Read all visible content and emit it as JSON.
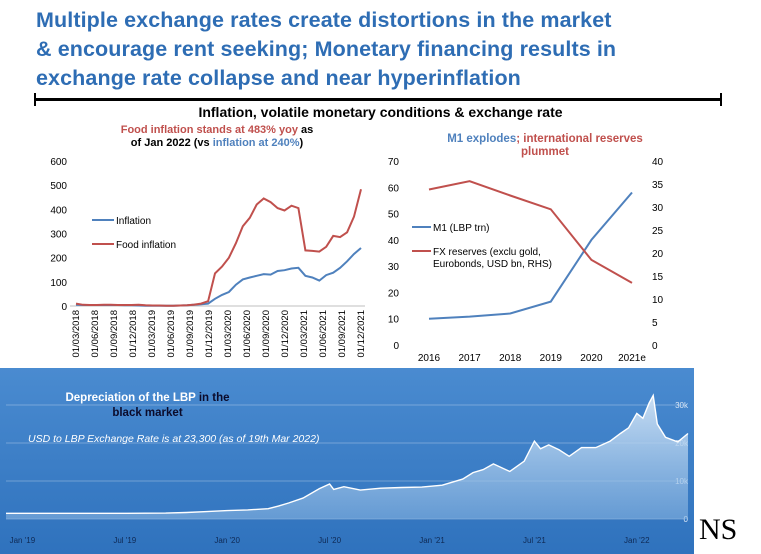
{
  "header": {
    "title_line1": "Multiple exchange rates create distortions in the market",
    "title_line2": "& encourage rent seeking; Monetary financing results in",
    "title_line3": "exchange rate collapse and near hyperinflation",
    "subtitle": "Inflation, volatile monetary conditions & exchange rate"
  },
  "annotations": {
    "left_part1": "Food inflation stands at 483% yoy",
    "left_part2": " as",
    "left_part3": "of Jan 2022 (vs ",
    "left_part4": "inflation at 240%",
    "left_part5": ")",
    "right_part1": "M1 explodes",
    "right_part2": "; international reserves",
    "right_part3": "plummet"
  },
  "lbp": {
    "title_part1": "Depreciation of the LBP",
    "title_part2": " in the",
    "title_part3": "black market",
    "note": "USD to LBP Exchange Rate is at 23,300 (as of 19th Mar 2022)"
  },
  "signature": "NS",
  "colors": {
    "title_blue": "#2e6db4",
    "series_blue": "#4f81bd",
    "series_red": "#c0504d",
    "panel_blue": "#3e7fc5"
  },
  "chart_data": [
    {
      "type": "line",
      "ylim": [
        0,
        600
      ],
      "yticks": [
        0,
        100,
        200,
        300,
        400,
        500,
        600
      ],
      "legend_position": "left-middle",
      "xticks": [
        "01/03/2018",
        "01/06/2018",
        "01/09/2018",
        "01/12/2018",
        "01/03/2019",
        "01/06/2019",
        "01/09/2019",
        "01/12/2019",
        "01/03/2020",
        "01/06/2020",
        "01/09/2020",
        "01/12/2020",
        "01/03/2021",
        "01/06/2021",
        "01/09/2021",
        "01/12/2021"
      ],
      "series": [
        {
          "name": "Inflation",
          "color": "#4f81bd",
          "values": [
            5,
            4,
            4,
            4,
            4,
            4,
            4,
            3,
            3,
            2,
            1,
            1,
            1,
            1,
            1,
            2,
            3,
            5,
            7,
            10,
            30,
            46,
            58,
            88,
            110,
            118,
            125,
            132,
            130,
            145,
            148,
            155,
            158,
            125,
            118,
            105,
            128,
            138,
            158,
            185,
            215,
            240
          ]
        },
        {
          "name": "Food inflation",
          "color": "#c0504d",
          "values": [
            10,
            5,
            4,
            4,
            5,
            5,
            4,
            4,
            4,
            5,
            3,
            2,
            2,
            1,
            1,
            2,
            3,
            6,
            10,
            20,
            135,
            163,
            200,
            260,
            330,
            365,
            420,
            445,
            430,
            405,
            395,
            415,
            405,
            230,
            228,
            225,
            245,
            290,
            285,
            305,
            370,
            483
          ]
        }
      ]
    },
    {
      "type": "line",
      "categories": [
        "2016",
        "2017",
        "2018",
        "2019",
        "2020",
        "2021e"
      ],
      "ylim_left": [
        0,
        70
      ],
      "yticks_left": [
        0,
        10,
        20,
        30,
        40,
        50,
        60,
        70
      ],
      "ylim_right": [
        0,
        40
      ],
      "yticks_right": [
        0,
        5,
        10,
        15,
        20,
        25,
        30,
        35,
        40
      ],
      "legend_position": "center",
      "series": [
        {
          "name": "M1 (LBP trn)",
          "axis": "left",
          "color": "#4f81bd",
          "values": [
            10,
            10.8,
            12,
            16.5,
            40,
            58
          ]
        },
        {
          "name": "FX reserves (exclu gold, Eurobonds, USD bn, RHS)",
          "axis": "right",
          "color": "#c0504d",
          "values": [
            33.8,
            35.6,
            32.5,
            29.5,
            18.5,
            13.5
          ]
        }
      ]
    },
    {
      "type": "area",
      "ylim": [
        0,
        35000
      ],
      "yticks": [
        "0",
        "10k",
        "20k",
        "30k"
      ],
      "ytick_values": [
        0,
        10000,
        20000,
        30000
      ],
      "xticks": [
        "Jan '19",
        "Jul '19",
        "Jan '20",
        "Jul '20",
        "Jan '21",
        "Jul '21",
        "Jan '22"
      ],
      "x_start": 2018.92,
      "x_end": 2022.25,
      "points": [
        [
          2018.92,
          1507
        ],
        [
          2019.5,
          1507
        ],
        [
          2019.7,
          1550
        ],
        [
          2019.8,
          1700
        ],
        [
          2019.9,
          1950
        ],
        [
          2020.0,
          2200
        ],
        [
          2020.1,
          2400
        ],
        [
          2020.2,
          2700
        ],
        [
          2020.25,
          3400
        ],
        [
          2020.3,
          4200
        ],
        [
          2020.37,
          5500
        ],
        [
          2020.45,
          8000
        ],
        [
          2020.5,
          9200
        ],
        [
          2020.52,
          7800
        ],
        [
          2020.57,
          8500
        ],
        [
          2020.65,
          7600
        ],
        [
          2020.75,
          8100
        ],
        [
          2020.85,
          8300
        ],
        [
          2020.95,
          8400
        ],
        [
          2021.05,
          8900
        ],
        [
          2021.15,
          10500
        ],
        [
          2021.2,
          12200
        ],
        [
          2021.25,
          13000
        ],
        [
          2021.3,
          14500
        ],
        [
          2021.38,
          12500
        ],
        [
          2021.45,
          15200
        ],
        [
          2021.5,
          20500
        ],
        [
          2021.53,
          18500
        ],
        [
          2021.57,
          19500
        ],
        [
          2021.62,
          18200
        ],
        [
          2021.67,
          16500
        ],
        [
          2021.73,
          18800
        ],
        [
          2021.8,
          18800
        ],
        [
          2021.87,
          20500
        ],
        [
          2021.92,
          22500
        ],
        [
          2021.96,
          24000
        ],
        [
          2022.0,
          27800
        ],
        [
          2022.03,
          26500
        ],
        [
          2022.06,
          30500
        ],
        [
          2022.08,
          32500
        ],
        [
          2022.1,
          25000
        ],
        [
          2022.14,
          21500
        ],
        [
          2022.2,
          20300
        ],
        [
          2022.25,
          22500
        ]
      ]
    }
  ]
}
